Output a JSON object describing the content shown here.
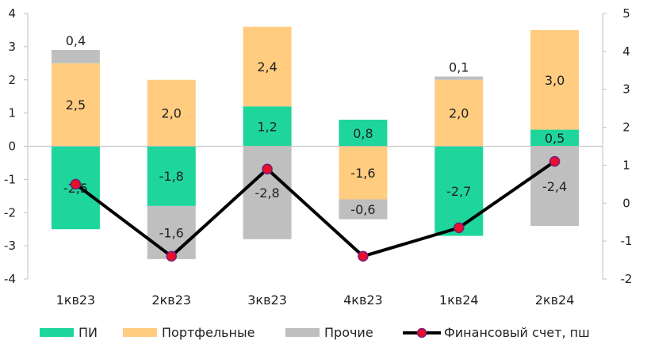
{
  "chart_data": {
    "type": "bar",
    "stacked": true,
    "categories": [
      "1кв23",
      "2кв23",
      "3кв23",
      "4кв23",
      "1кв24",
      "2кв24"
    ],
    "series": [
      {
        "name": "ПИ",
        "type": "bar",
        "color": "#1ed69b",
        "values": [
          -2.5,
          -1.8,
          1.2,
          0.8,
          -2.7,
          0.5
        ],
        "labels": [
          "-2,5",
          "-1,8",
          "1,2",
          "0,8",
          "-2,7",
          "0,5"
        ]
      },
      {
        "name": "Портфельные",
        "type": "bar",
        "color": "#ffcc80",
        "values": [
          2.5,
          2.0,
          2.4,
          -1.6,
          2.0,
          3.0
        ],
        "labels": [
          "2,5",
          "2,0",
          "2,4",
          "-1,6",
          "2,0",
          "3,0"
        ]
      },
      {
        "name": "Прочие",
        "type": "bar",
        "color": "#bfbfbf",
        "values": [
          0.4,
          -1.6,
          -2.8,
          -0.6,
          0.1,
          -2.4
        ],
        "labels": [
          "0,4",
          "-1,6",
          "-2,8",
          "-0,6",
          "0,1",
          "-2,4"
        ]
      },
      {
        "name": "Финансовый счет, пш",
        "type": "line",
        "axis": "right",
        "color": "#000000",
        "marker_color": "#e8102a",
        "values": [
          0.5,
          -1.4,
          0.9,
          -1.4,
          -0.65,
          1.1
        ]
      }
    ],
    "y_left": {
      "ticks": [
        "-4",
        "-3",
        "-2",
        "-1",
        "0",
        "1",
        "2",
        "3",
        "4"
      ],
      "range": [
        -4,
        4
      ]
    },
    "y_right": {
      "ticks": [
        "-2",
        "-1",
        "0",
        "1",
        "2",
        "3",
        "4",
        "5"
      ],
      "range": [
        -2,
        5
      ]
    },
    "legend_position": "bottom",
    "grid": false
  }
}
